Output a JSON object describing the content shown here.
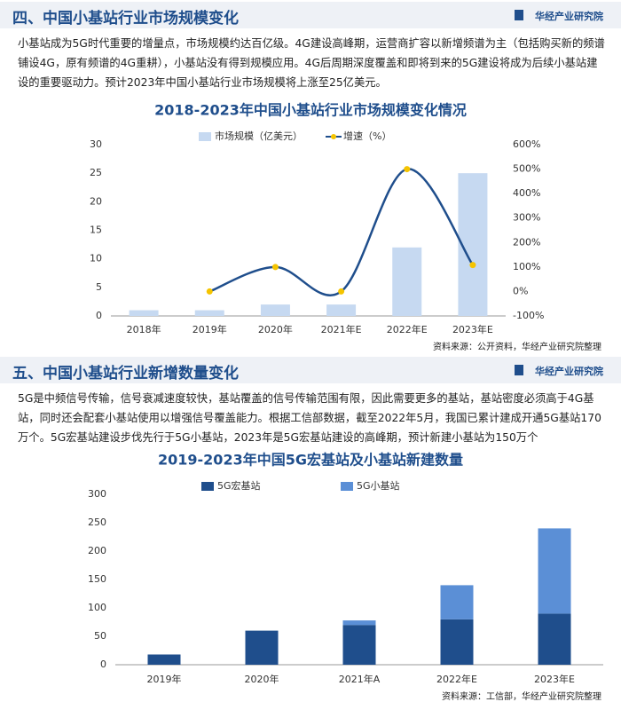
{
  "sections": [
    {
      "heading": "四、中国小基站行业市场规模变化",
      "brand": "华经产业研究院",
      "paragraph": "小基站成为5G时代重要的增量点，市场规模约达百亿级。4G建设高峰期，运营商扩容以新增频谱为主（包括购买新的频谱铺设4G，原有频谱的4G重耕），小基站没有得到规模应用。4G后周期深度覆盖和即将到来的5G建设将成为后续小基站建设的重要驱动力。预计2023年中国小基站行业市场规模将上涨至25亿美元。",
      "source": "资料来源：公开资料，华经产业研究院整理"
    },
    {
      "heading": "五、中国小基站行业新增数量变化",
      "brand": "华经产业研究院",
      "paragraph": "5G是中频信号传输，信号衰减速度较快，基站覆盖的信号传输范围有限，因此需要更多的基站，基站密度必须高于4G基站，同时还会配套小基站使用以增强信号覆盖能力。根据工信部数据，截至2022年5月，我国已累计建成开通5G基站170万个。5G宏基站建设步伐先行于5G小基站，2023年是5G宏基站建设的高峰期，预计新建小基站为150万个",
      "source": "资料来源：工信部，华经产业研究院整理"
    }
  ],
  "chart_data": [
    {
      "type": "combo",
      "title": "2018-2023年中国小基站行业市场规模变化情况",
      "categories": [
        "2018年",
        "2019年",
        "2020年",
        "2021年E",
        "2022年E",
        "2023年E"
      ],
      "series": [
        {
          "name": "市场规模（亿美元）",
          "type": "bar",
          "color": "#c6d9f1",
          "values": [
            1,
            1,
            2,
            2,
            12,
            25
          ]
        },
        {
          "name": "增速（%）",
          "type": "line",
          "axis": "y2",
          "color": "#1f4e8c",
          "marker_color": "#f5c400",
          "values": [
            null,
            0,
            100,
            0,
            500,
            108
          ]
        }
      ],
      "ylim": [
        0,
        30
      ],
      "yticks": [
        0,
        5,
        10,
        15,
        20,
        25,
        30
      ],
      "y2lim": [
        -100,
        600
      ],
      "y2ticks": [
        {
          "value": -100,
          "label": "-100%"
        },
        {
          "value": 0,
          "label": "0%"
        },
        {
          "value": 100,
          "label": "100%"
        },
        {
          "value": 200,
          "label": "200%"
        },
        {
          "value": 300,
          "label": "300%"
        },
        {
          "value": 400,
          "label": "400%"
        },
        {
          "value": 500,
          "label": "500%"
        },
        {
          "value": 600,
          "label": "600%"
        }
      ],
      "grid": false
    },
    {
      "type": "stacked_bar",
      "title": "2019-2023年中国5G宏基站及小基站新建数量",
      "categories": [
        "2019年",
        "2020年",
        "2021年A",
        "2022年E",
        "2023年E"
      ],
      "series": [
        {
          "name": "5G宏基站",
          "color": "#1f4e8c",
          "values": [
            18,
            60,
            70,
            80,
            90
          ]
        },
        {
          "name": "5G小基站",
          "color": "#5b8fd6",
          "values": [
            0,
            0,
            8,
            60,
            150
          ]
        }
      ],
      "ylim": [
        0,
        300
      ],
      "yticks": [
        0,
        50,
        100,
        150,
        200,
        250,
        300
      ],
      "grid": false
    }
  ]
}
